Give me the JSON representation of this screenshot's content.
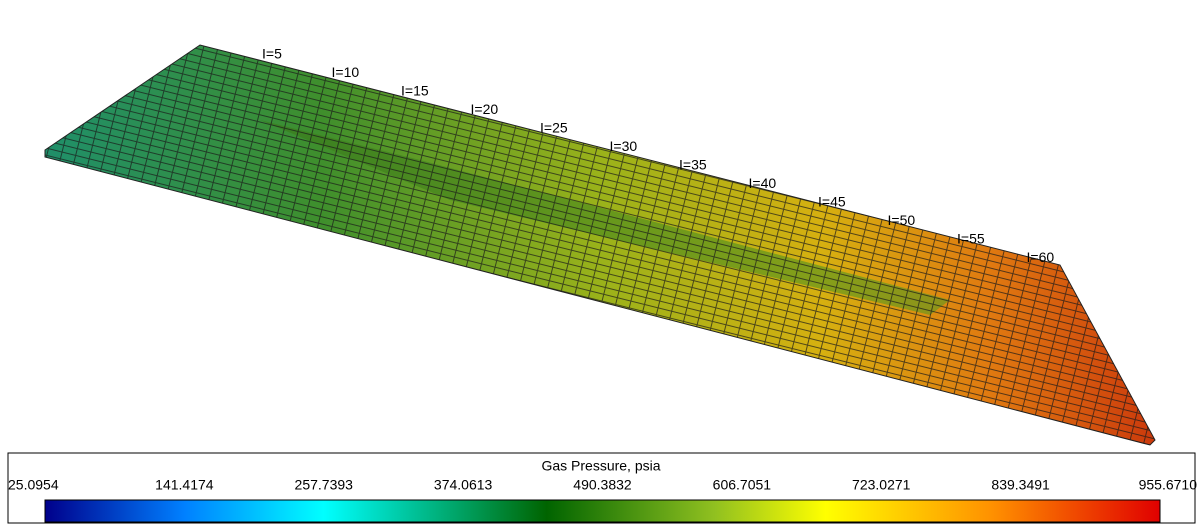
{
  "grid_labels": [
    "I=5",
    "I=10",
    "I=15",
    "I=20",
    "I=25",
    "I=30",
    "I=35",
    "I=40",
    "I=45",
    "I=50",
    "I=55",
    "I=60"
  ],
  "colorbar": {
    "title": "Gas Pressure, psia",
    "ticks": [
      "25.0954",
      "141.4174",
      "257.7393",
      "374.0613",
      "490.3832",
      "606.7051",
      "723.0271",
      "839.3491",
      "955.6710"
    ]
  }
}
